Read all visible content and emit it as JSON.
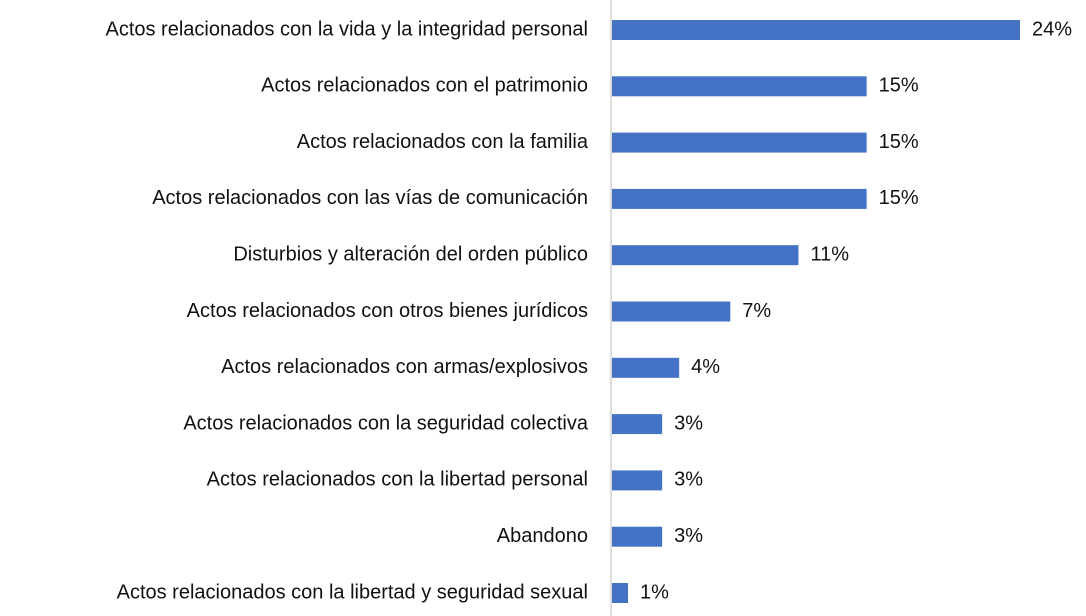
{
  "chart_data": {
    "type": "hbar",
    "categories": [
      "Actos relacionados con la vida y la integridad personal",
      "Actos relacionados con el patrimonio",
      "Actos relacionados con la familia",
      "Actos relacionados con las vías de comunicación",
      "Disturbios y alteración del orden público",
      "Actos relacionados con otros bienes jurídicos",
      "Actos relacionados con armas/explosivos",
      "Actos relacionados con la seguridad colectiva",
      "Actos relacionados con la libertad personal",
      "Abandono",
      "Actos relacionados con la libertad y seguridad sexual"
    ],
    "values": [
      24,
      15,
      15,
      15,
      11,
      7,
      4,
      3,
      3,
      3,
      1
    ],
    "value_labels": [
      "24%",
      "15%",
      "15%",
      "15%",
      "11%",
      "7%",
      "4%",
      "3%",
      "3%",
      "3%",
      "1%"
    ],
    "color": "#4472c4"
  }
}
